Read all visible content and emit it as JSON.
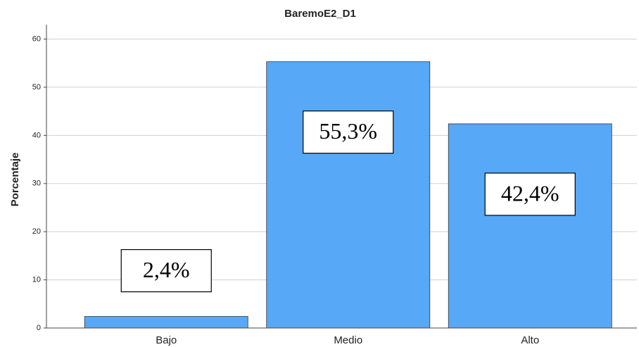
{
  "chart_data": {
    "type": "bar",
    "title": "BaremoE2_D1",
    "y_label": "Porcentaje",
    "categories": [
      "Bajo",
      "Medio",
      "Alto"
    ],
    "values": [
      2.4,
      55.3,
      42.4
    ],
    "value_labels": [
      "2,4%",
      "55,3%",
      "42,4%"
    ],
    "color": "#57a8f6",
    "ylim": [
      0,
      63
    ],
    "yticks": [
      0,
      10,
      20,
      30,
      40,
      50,
      60
    ],
    "grid": true
  }
}
